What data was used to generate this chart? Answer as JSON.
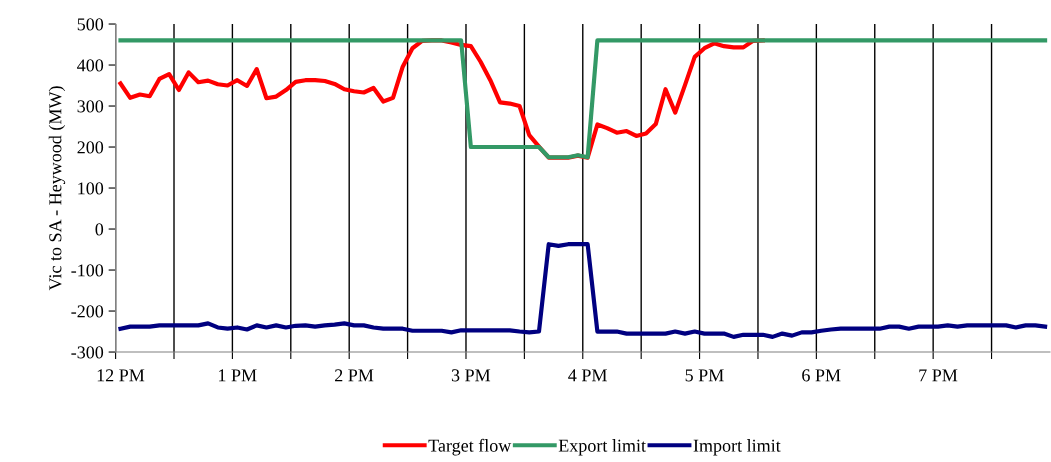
{
  "chart_data": {
    "type": "line",
    "ylabel": "Vic to SA - Heywood (MW)",
    "categories": [
      "12 PM",
      null,
      null,
      null,
      null,
      null,
      null,
      null,
      null,
      null,
      null,
      null,
      "1 PM",
      null,
      null,
      null,
      null,
      null,
      null,
      null,
      null,
      null,
      null,
      null,
      "2 PM",
      null,
      null,
      null,
      null,
      null,
      null,
      null,
      null,
      null,
      null,
      null,
      "3 PM",
      null,
      null,
      null,
      null,
      null,
      null,
      null,
      null,
      null,
      null,
      null,
      "4 PM",
      null,
      null,
      null,
      null,
      null,
      null,
      null,
      null,
      null,
      null,
      null,
      "5 PM",
      null,
      null,
      null,
      null,
      null,
      null,
      null,
      null,
      null,
      null,
      null,
      "6 PM",
      null,
      null,
      null,
      null,
      null,
      null,
      null,
      null,
      null,
      null,
      null,
      "7 PM",
      null,
      null,
      null,
      null,
      null,
      null,
      null,
      null,
      null,
      null,
      null
    ],
    "ylim": [
      -300,
      500
    ],
    "yticks": [
      -300,
      -200,
      -100,
      0,
      100,
      200,
      300,
      400,
      500
    ],
    "grid": "x",
    "legend": "bottom",
    "marker": "none",
    "line_style": "solid",
    "series": [
      {
        "name": "Target flow",
        "color": "#ff0000",
        "values": [
          355,
          320,
          328,
          324,
          366,
          378,
          339,
          382,
          358,
          362,
          353,
          350,
          363,
          349,
          390,
          319,
          323,
          339,
          359,
          363,
          363,
          361,
          354,
          341,
          336,
          333,
          344,
          311,
          320,
          396,
          441,
          459,
          460,
          460,
          455,
          449,
          446,
          408,
          363,
          309,
          306,
          300,
          229,
          201,
          174,
          174,
          174,
          179,
          174,
          255,
          246,
          235,
          239,
          227,
          233,
          256,
          341,
          284,
          351,
          420,
          441,
          453,
          446,
          443,
          443,
          459,
          460,
          null,
          null,
          null,
          null,
          null,
          null,
          null,
          null,
          null,
          null,
          null,
          null,
          null,
          null,
          null,
          null,
          null,
          null,
          null,
          null,
          null,
          null,
          null,
          null,
          null,
          null,
          null,
          null,
          null
        ]
      },
      {
        "name": "Export limit",
        "color": "#339966",
        "values": [
          460,
          460,
          460,
          460,
          460,
          460,
          460,
          460,
          460,
          460,
          460,
          460,
          460,
          460,
          460,
          460,
          460,
          460,
          460,
          460,
          460,
          460,
          460,
          460,
          460,
          460,
          460,
          460,
          460,
          460,
          460,
          460,
          460,
          460,
          460,
          460,
          200,
          200,
          200,
          200,
          200,
          200,
          200,
          200,
          175,
          175,
          175,
          180,
          175,
          460,
          460,
          460,
          460,
          460,
          460,
          460,
          460,
          460,
          460,
          460,
          460,
          460,
          460,
          460,
          460,
          460,
          460,
          460,
          460,
          460,
          460,
          460,
          460,
          460,
          460,
          460,
          460,
          460,
          460,
          460,
          460,
          460,
          460,
          460,
          460,
          460,
          460,
          460,
          460,
          460,
          460,
          460,
          460,
          460,
          460,
          460
        ]
      },
      {
        "name": "Import limit",
        "color": "#000080",
        "values": [
          -243,
          -238,
          -238,
          -238,
          -235,
          -235,
          -235,
          -235,
          -235,
          -230,
          -240,
          -243,
          -240,
          -245,
          -235,
          -240,
          -235,
          -240,
          -236,
          -235,
          -238,
          -235,
          -233,
          -230,
          -235,
          -235,
          -240,
          -243,
          -243,
          -243,
          -248,
          -248,
          -248,
          -248,
          -252,
          -247,
          -247,
          -247,
          -247,
          -247,
          -247,
          -250,
          -252,
          -250,
          -37,
          -41,
          -37,
          -37,
          -37,
          -250,
          -250,
          -250,
          -255,
          -255,
          -255,
          -255,
          -255,
          -250,
          -255,
          -250,
          -255,
          -255,
          -255,
          -263,
          -258,
          -258,
          -258,
          -263,
          -255,
          -260,
          -252,
          -252,
          -248,
          -245,
          -243,
          -243,
          -243,
          -243,
          -243,
          -238,
          -238,
          -243,
          -238,
          -238,
          -238,
          -235,
          -238,
          -235,
          -235,
          -235,
          -235,
          -235,
          -240,
          -235,
          -235,
          -238
        ]
      }
    ]
  }
}
